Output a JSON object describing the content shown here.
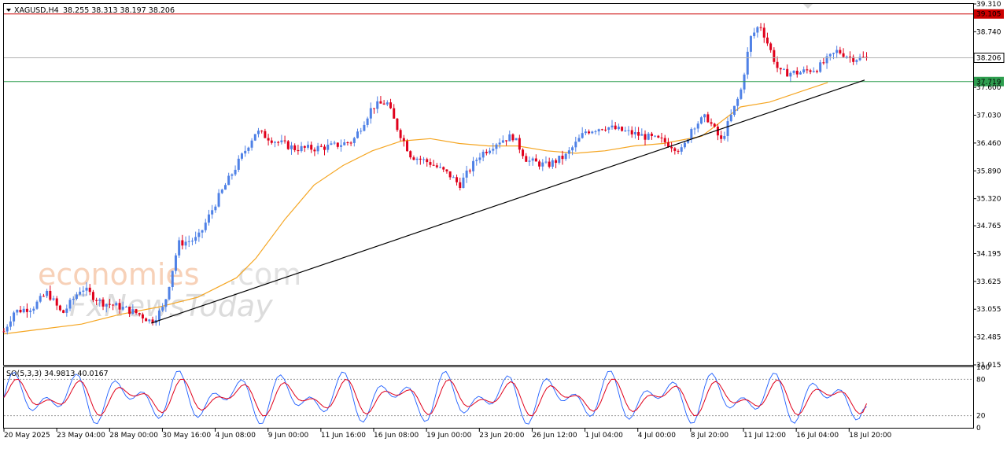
{
  "header": {
    "symbol": "XAGUSD,H4",
    "ohlc": "38.255 38.313 38.197 38.206"
  },
  "oscillator": {
    "label": "SO(5,3,3) 34.9813 40.0167",
    "levels": [
      "100",
      "80",
      "20",
      "0"
    ]
  },
  "watermark": {
    "brand1": "economies",
    "brand1_suffix": ".com",
    "brand2": "FxNewsToday"
  },
  "colors": {
    "bull": "#4f81e6",
    "bear": "#e0001b",
    "ma": "#f5a623",
    "resistance": "#cc0000",
    "support": "#2e9e4f",
    "current": "#b0b0b0",
    "stoch_main": "#1f5fff",
    "stoch_signal": "#e0001b"
  },
  "chart_data": {
    "type": "candlestick",
    "symbol": "XAGUSD",
    "timeframe": "H4",
    "y_ticks": [
      "39.310",
      "38.740",
      "37.600",
      "37.030",
      "36.460",
      "35.890",
      "35.320",
      "34.765",
      "34.195",
      "33.625",
      "33.055",
      "32.485",
      "31.915"
    ],
    "ylim": [
      31.915,
      39.31
    ],
    "x_ticks": [
      "20 May 2025",
      "23 May 04:00",
      "28 May 00:00",
      "30 May 16:00",
      "4 Jun 08:00",
      "9 Jun 00:00",
      "11 Jun 16:00",
      "16 Jun 08:00",
      "19 Jun 00:00",
      "23 Jun 20:00",
      "26 Jun 12:00",
      "1 Jul 04:00",
      "4 Jul 00:00",
      "8 Jul 20:00",
      "11 Jul 12:00",
      "16 Jul 04:00",
      "18 Jul 20:00"
    ],
    "price_levels": [
      {
        "name": "resistance",
        "value": 39.105,
        "label": "39.105"
      },
      {
        "name": "current",
        "value": 38.206,
        "label": "38.206"
      },
      {
        "name": "support",
        "value": 37.719,
        "label": "37.719"
      }
    ],
    "trendline": {
      "from": {
        "x": 0.152,
        "y": 32.77
      },
      "to": {
        "x": 0.888,
        "y": 37.75
      }
    },
    "price_path": [
      [
        0.0,
        32.6
      ],
      [
        0.01,
        33.0
      ],
      [
        0.03,
        33.1
      ],
      [
        0.045,
        33.4
      ],
      [
        0.06,
        32.95
      ],
      [
        0.08,
        33.5
      ],
      [
        0.1,
        33.2
      ],
      [
        0.12,
        33.1
      ],
      [
        0.14,
        32.95
      ],
      [
        0.152,
        32.8
      ],
      [
        0.165,
        33.1
      ],
      [
        0.18,
        34.4
      ],
      [
        0.2,
        34.5
      ],
      [
        0.22,
        35.3
      ],
      [
        0.24,
        36.0
      ],
      [
        0.26,
        36.7
      ],
      [
        0.28,
        36.5
      ],
      [
        0.3,
        36.35
      ],
      [
        0.32,
        36.35
      ],
      [
        0.34,
        36.4
      ],
      [
        0.36,
        36.5
      ],
      [
        0.38,
        37.2
      ],
      [
        0.395,
        37.3
      ],
      [
        0.405,
        36.8
      ],
      [
        0.42,
        36.2
      ],
      [
        0.44,
        36.05
      ],
      [
        0.46,
        35.8
      ],
      [
        0.47,
        35.6
      ],
      [
        0.49,
        36.2
      ],
      [
        0.51,
        36.5
      ],
      [
        0.525,
        36.6
      ],
      [
        0.54,
        36.1
      ],
      [
        0.56,
        36.0
      ],
      [
        0.58,
        36.2
      ],
      [
        0.6,
        36.7
      ],
      [
        0.62,
        36.8
      ],
      [
        0.64,
        36.7
      ],
      [
        0.66,
        36.6
      ],
      [
        0.68,
        36.5
      ],
      [
        0.7,
        36.3
      ],
      [
        0.71,
        36.8
      ],
      [
        0.725,
        37.0
      ],
      [
        0.74,
        36.5
      ],
      [
        0.76,
        37.5
      ],
      [
        0.77,
        38.6
      ],
      [
        0.78,
        38.9
      ],
      [
        0.79,
        38.4
      ],
      [
        0.8,
        37.9
      ],
      [
        0.82,
        37.9
      ],
      [
        0.84,
        38.0
      ],
      [
        0.86,
        38.35
      ],
      [
        0.875,
        38.2
      ],
      [
        0.89,
        38.2
      ]
    ],
    "moving_average": [
      [
        0.0,
        32.55
      ],
      [
        0.04,
        32.65
      ],
      [
        0.08,
        32.75
      ],
      [
        0.12,
        32.95
      ],
      [
        0.16,
        33.1
      ],
      [
        0.2,
        33.3
      ],
      [
        0.24,
        33.7
      ],
      [
        0.26,
        34.1
      ],
      [
        0.29,
        34.9
      ],
      [
        0.32,
        35.6
      ],
      [
        0.35,
        36.0
      ],
      [
        0.38,
        36.3
      ],
      [
        0.41,
        36.5
      ],
      [
        0.44,
        36.55
      ],
      [
        0.47,
        36.45
      ],
      [
        0.5,
        36.4
      ],
      [
        0.53,
        36.4
      ],
      [
        0.56,
        36.3
      ],
      [
        0.59,
        36.25
      ],
      [
        0.62,
        36.3
      ],
      [
        0.65,
        36.4
      ],
      [
        0.68,
        36.45
      ],
      [
        0.72,
        36.6
      ],
      [
        0.74,
        36.9
      ],
      [
        0.76,
        37.2
      ],
      [
        0.79,
        37.3
      ],
      [
        0.82,
        37.5
      ],
      [
        0.85,
        37.7
      ]
    ],
    "stochastic": {
      "name": "SO(5,3,3)",
      "main": 34.9813,
      "signal": 40.0167,
      "ylim": [
        0,
        100
      ],
      "levels": [
        80,
        20
      ]
    }
  }
}
